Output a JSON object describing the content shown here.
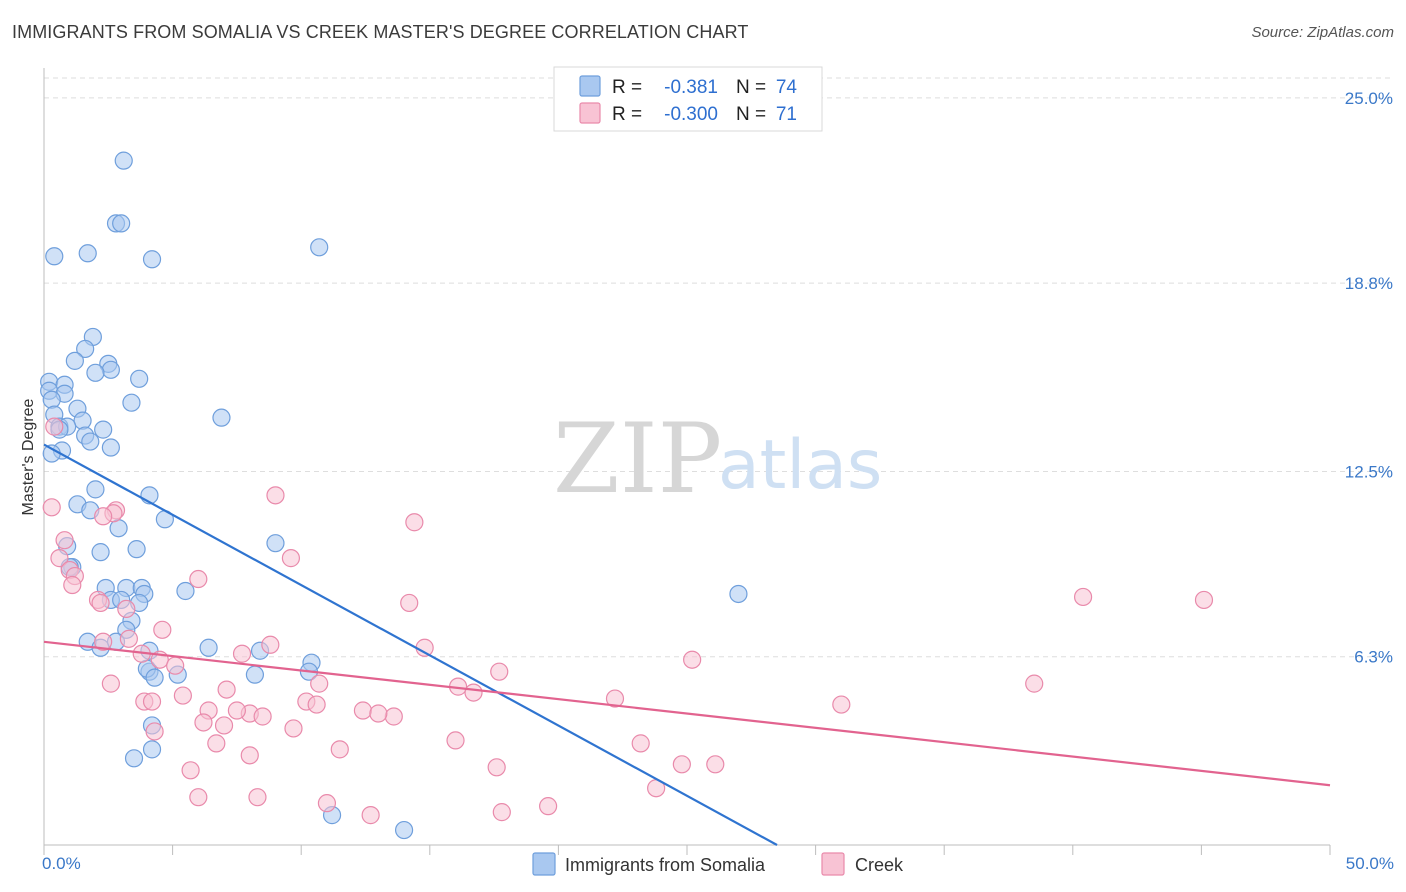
{
  "header": {
    "title": "IMMIGRANTS FROM SOMALIA VS CREEK MASTER'S DEGREE CORRELATION CHART",
    "source": "Source: ZipAtlas.com"
  },
  "watermark": {
    "zip": "ZIP",
    "atlas": "atlas"
  },
  "chart_data": {
    "type": "scatter",
    "title": "IMMIGRANTS FROM SOMALIA VS CREEK MASTER'S DEGREE CORRELATION CHART",
    "xlabel": "",
    "ylabel": "Master's Degree",
    "xlim": [
      0,
      50
    ],
    "ylim": [
      0,
      26
    ],
    "x_tick_labels": [
      {
        "value": 0,
        "label": "0.0%"
      },
      {
        "value": 50,
        "label": "50.0%"
      }
    ],
    "y_tick_labels": [
      {
        "value": 6.3,
        "label": "6.3%"
      },
      {
        "value": 12.5,
        "label": "12.5%"
      },
      {
        "value": 18.8,
        "label": "18.8%"
      },
      {
        "value": 25.0,
        "label": "25.0%"
      }
    ],
    "grid": true,
    "legend_position": "top-center",
    "stats_legend": [
      {
        "series": "Immigrants from Somalia",
        "r_label": "R =",
        "r_value": "-0.381",
        "n_label": "N =",
        "n_value": "74",
        "color": "#a9c8f0",
        "stroke": "#6f9fdc"
      },
      {
        "series": "Creek",
        "r_label": "R =",
        "r_value": "-0.300",
        "n_label": "N =",
        "n_value": "71",
        "color": "#f8c3d4",
        "stroke": "#e98aab"
      }
    ],
    "series": [
      {
        "name": "Immigrants from Somalia",
        "color": "#a9c8f0",
        "stroke": "#6f9fdc",
        "trend_color": "#2f74d0",
        "trend": {
          "x": [
            0,
            28.5
          ],
          "y": [
            13.4,
            0
          ]
        },
        "points": [
          [
            3.1,
            22.9
          ],
          [
            2.8,
            20.8
          ],
          [
            3.0,
            20.8
          ],
          [
            0.4,
            19.7
          ],
          [
            1.7,
            19.8
          ],
          [
            4.2,
            19.6
          ],
          [
            10.7,
            20.0
          ],
          [
            1.9,
            17.0
          ],
          [
            1.6,
            16.6
          ],
          [
            1.2,
            16.2
          ],
          [
            2.5,
            16.1
          ],
          [
            2.6,
            15.9
          ],
          [
            2.0,
            15.8
          ],
          [
            3.7,
            15.6
          ],
          [
            0.2,
            15.5
          ],
          [
            0.8,
            15.4
          ],
          [
            0.2,
            15.2
          ],
          [
            0.8,
            15.1
          ],
          [
            0.3,
            14.9
          ],
          [
            3.4,
            14.8
          ],
          [
            1.3,
            14.6
          ],
          [
            0.4,
            14.4
          ],
          [
            1.5,
            14.2
          ],
          [
            6.9,
            14.3
          ],
          [
            0.6,
            14.0
          ],
          [
            0.9,
            14.0
          ],
          [
            0.6,
            13.9
          ],
          [
            2.3,
            13.9
          ],
          [
            1.6,
            13.7
          ],
          [
            1.8,
            13.5
          ],
          [
            2.6,
            13.3
          ],
          [
            0.7,
            13.2
          ],
          [
            0.3,
            13.1
          ],
          [
            2.0,
            11.9
          ],
          [
            4.1,
            11.7
          ],
          [
            1.3,
            11.4
          ],
          [
            1.8,
            11.2
          ],
          [
            4.7,
            10.9
          ],
          [
            2.9,
            10.6
          ],
          [
            9.0,
            10.1
          ],
          [
            0.9,
            10.0
          ],
          [
            3.6,
            9.9
          ],
          [
            2.2,
            9.8
          ],
          [
            1.1,
            9.3
          ],
          [
            1.0,
            9.3
          ],
          [
            2.4,
            8.6
          ],
          [
            3.2,
            8.6
          ],
          [
            3.8,
            8.6
          ],
          [
            5.5,
            8.5
          ],
          [
            27.0,
            8.4
          ],
          [
            3.9,
            8.4
          ],
          [
            2.6,
            8.2
          ],
          [
            3.0,
            8.2
          ],
          [
            3.7,
            8.1
          ],
          [
            3.4,
            7.5
          ],
          [
            3.2,
            7.2
          ],
          [
            1.7,
            6.8
          ],
          [
            2.2,
            6.6
          ],
          [
            6.4,
            6.6
          ],
          [
            8.4,
            6.5
          ],
          [
            4.1,
            6.5
          ],
          [
            2.8,
            6.8
          ],
          [
            10.4,
            6.1
          ],
          [
            4.1,
            5.8
          ],
          [
            4.0,
            5.9
          ],
          [
            8.2,
            5.7
          ],
          [
            5.2,
            5.7
          ],
          [
            4.3,
            5.6
          ],
          [
            4.2,
            4.0
          ],
          [
            4.2,
            3.2
          ],
          [
            3.5,
            2.9
          ],
          [
            11.2,
            1.0
          ],
          [
            14.0,
            0.5
          ],
          [
            10.3,
            5.8
          ]
        ]
      },
      {
        "name": "Creek",
        "color": "#f8c3d4",
        "stroke": "#e98aab",
        "trend_color": "#e2638f",
        "trend": {
          "x": [
            0,
            50
          ],
          "y": [
            6.8,
            2.0
          ]
        },
        "points": [
          [
            0.4,
            14.0
          ],
          [
            9.0,
            11.7
          ],
          [
            0.3,
            11.3
          ],
          [
            2.8,
            11.2
          ],
          [
            2.7,
            11.1
          ],
          [
            2.3,
            11.0
          ],
          [
            14.4,
            10.8
          ],
          [
            0.8,
            10.2
          ],
          [
            9.6,
            9.6
          ],
          [
            0.6,
            9.6
          ],
          [
            1.0,
            9.2
          ],
          [
            1.2,
            9.0
          ],
          [
            6.0,
            8.9
          ],
          [
            1.1,
            8.7
          ],
          [
            40.4,
            8.3
          ],
          [
            45.1,
            8.2
          ],
          [
            2.1,
            8.2
          ],
          [
            2.2,
            8.1
          ],
          [
            14.2,
            8.1
          ],
          [
            3.2,
            7.9
          ],
          [
            4.6,
            7.2
          ],
          [
            3.3,
            6.9
          ],
          [
            2.3,
            6.8
          ],
          [
            8.8,
            6.7
          ],
          [
            14.8,
            6.6
          ],
          [
            7.7,
            6.4
          ],
          [
            3.8,
            6.4
          ],
          [
            4.5,
            6.2
          ],
          [
            25.2,
            6.2
          ],
          [
            5.1,
            6.0
          ],
          [
            17.7,
            5.8
          ],
          [
            2.6,
            5.4
          ],
          [
            10.7,
            5.4
          ],
          [
            38.5,
            5.4
          ],
          [
            16.1,
            5.3
          ],
          [
            7.1,
            5.2
          ],
          [
            5.4,
            5.0
          ],
          [
            16.7,
            5.1
          ],
          [
            22.2,
            4.9
          ],
          [
            3.9,
            4.8
          ],
          [
            4.2,
            4.8
          ],
          [
            10.2,
            4.8
          ],
          [
            10.6,
            4.7
          ],
          [
            31.0,
            4.7
          ],
          [
            12.4,
            4.5
          ],
          [
            8.0,
            4.4
          ],
          [
            8.5,
            4.3
          ],
          [
            6.4,
            4.5
          ],
          [
            7.5,
            4.5
          ],
          [
            13.6,
            4.3
          ],
          [
            13.0,
            4.4
          ],
          [
            6.2,
            4.1
          ],
          [
            7.0,
            4.0
          ],
          [
            9.7,
            3.9
          ],
          [
            4.3,
            3.8
          ],
          [
            16.0,
            3.5
          ],
          [
            6.7,
            3.4
          ],
          [
            23.2,
            3.4
          ],
          [
            11.5,
            3.2
          ],
          [
            8.0,
            3.0
          ],
          [
            17.6,
            2.6
          ],
          [
            24.8,
            2.7
          ],
          [
            26.1,
            2.7
          ],
          [
            5.7,
            2.5
          ],
          [
            6.0,
            1.6
          ],
          [
            8.3,
            1.6
          ],
          [
            11.0,
            1.4
          ],
          [
            12.7,
            1.0
          ],
          [
            17.8,
            1.1
          ],
          [
            19.6,
            1.3
          ],
          [
            23.8,
            1.9
          ]
        ]
      }
    ]
  }
}
